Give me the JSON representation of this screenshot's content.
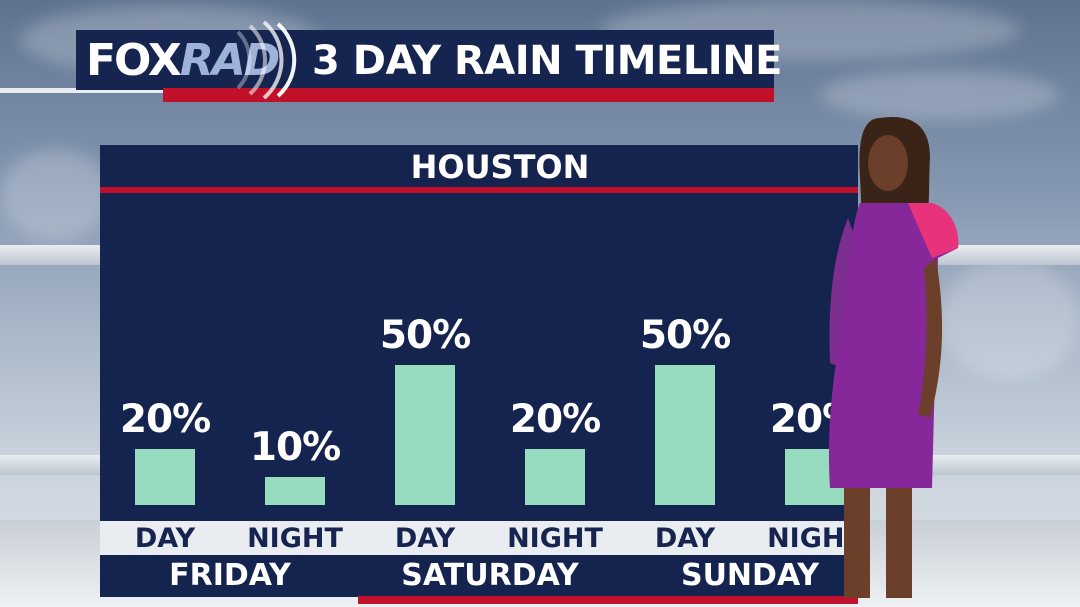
{
  "header": {
    "logo_main": "FOX",
    "logo_sub": "RAD",
    "title": "3 DAY RAIN TIMELINE"
  },
  "chart_data": {
    "type": "bar",
    "title": "HOUSTON",
    "categories": [
      "DAY",
      "NIGHT",
      "DAY",
      "NIGHT",
      "DAY",
      "NIGHT"
    ],
    "groups": [
      "FRIDAY",
      "SATURDAY",
      "SUNDAY"
    ],
    "values": [
      20,
      10,
      50,
      20,
      50,
      20
    ],
    "labels": [
      "20%",
      "10%",
      "50%",
      "20%",
      "50%",
      "20%"
    ],
    "unit": "%",
    "ylim": [
      0,
      60
    ],
    "bar_color": "#98dcc0",
    "grid": false
  },
  "colors": {
    "panel": "#15234f",
    "accent_red": "#c0102a",
    "bar": "#98dcc0"
  }
}
